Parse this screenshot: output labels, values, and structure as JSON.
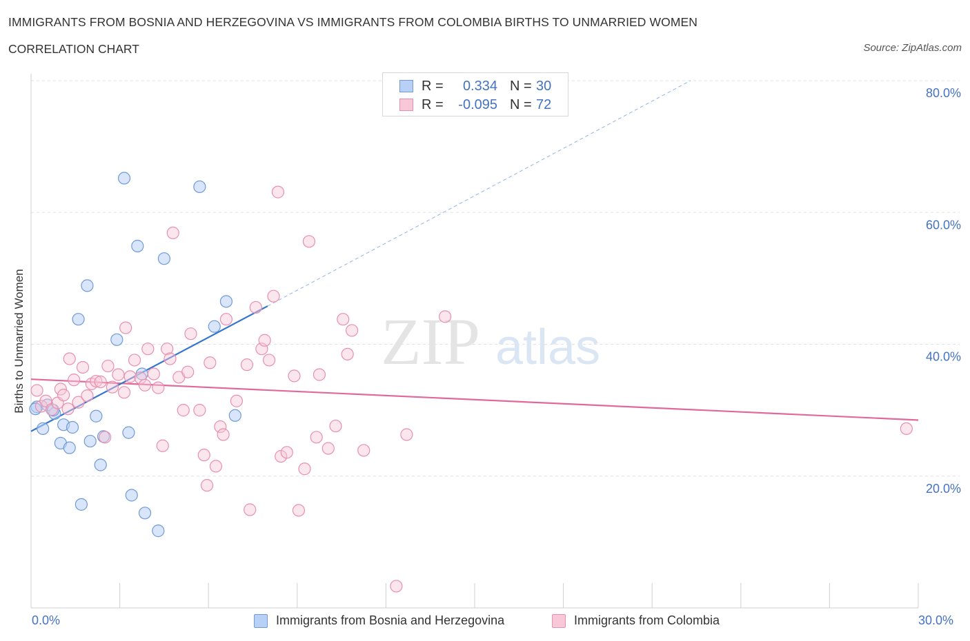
{
  "title": "IMMIGRANTS FROM BOSNIA AND HERZEGOVINA VS IMMIGRANTS FROM COLOMBIA BIRTHS TO UNMARRIED WOMEN",
  "subtitle": "CORRELATION CHART",
  "source": "Source: ZipAtlas.com",
  "watermark": {
    "zip": "ZIP",
    "atlas": "atlas"
  },
  "legend": {
    "rows": [
      {
        "r_label": "R =",
        "r_value": "0.334",
        "n_label": "N =",
        "n_value": "30"
      },
      {
        "r_label": "R =",
        "r_value": "-0.095",
        "n_label": "N =",
        "n_value": "72"
      }
    ]
  },
  "bottom_legend": {
    "series1": "Immigrants from Bosnia and Herzegovina",
    "series2": "Immigrants from Colombia"
  },
  "colors": {
    "blue_fill": "#b8d0f5",
    "blue_stroke": "#6f9ad6",
    "blue_line": "#3575d0",
    "pink_fill": "#f8c8d8",
    "pink_stroke": "#e88fae",
    "pink_line": "#e0689a",
    "grid": "#e0e0e0",
    "accent_text": "#4472c4"
  },
  "chart_data": {
    "type": "scatter",
    "title": "IMMIGRANTS FROM BOSNIA AND HERZEGOVINA VS IMMIGRANTS FROM COLOMBIA BIRTHS TO UNMARRIED WOMEN",
    "xlabel": "",
    "ylabel": "Births to Unmarried Women",
    "xlim": [
      0,
      30
    ],
    "ylim": [
      0,
      80
    ],
    "x_tick_labels": [
      "0.0%",
      "30.0%"
    ],
    "y_ticks": [
      20,
      40,
      60,
      80
    ],
    "y_tick_labels": [
      "20.0%",
      "40.0%",
      "60.0%",
      "80.0%"
    ],
    "grid": true,
    "legend_position": "top-center",
    "series": [
      {
        "name": "Immigrants from Bosnia and Herzegovina",
        "color": "#b8d0f5",
        "points": [
          [
            0.2,
            30.5
          ],
          [
            0.4,
            27.2
          ],
          [
            0.55,
            30.8
          ],
          [
            0.8,
            29.5
          ],
          [
            1.0,
            25.0
          ],
          [
            1.1,
            27.8
          ],
          [
            1.3,
            24.3
          ],
          [
            1.4,
            27.4
          ],
          [
            1.6,
            43.8
          ],
          [
            1.7,
            15.7
          ],
          [
            1.9,
            48.9
          ],
          [
            2.0,
            25.3
          ],
          [
            2.2,
            29.1
          ],
          [
            2.35,
            21.7
          ],
          [
            2.45,
            26.0
          ],
          [
            2.9,
            40.7
          ],
          [
            3.15,
            65.2
          ],
          [
            3.3,
            26.6
          ],
          [
            3.4,
            17.1
          ],
          [
            3.6,
            54.9
          ],
          [
            3.75,
            35.5
          ],
          [
            3.85,
            14.4
          ],
          [
            4.3,
            11.7
          ],
          [
            4.5,
            53.0
          ],
          [
            5.7,
            63.9
          ],
          [
            6.2,
            42.7
          ],
          [
            6.6,
            46.5
          ],
          [
            6.9,
            29.2
          ],
          [
            0.15,
            30.2
          ],
          [
            0.75,
            30.0
          ]
        ],
        "trend": {
          "x": [
            0,
            8
          ],
          "y": [
            26.8,
            45.8
          ]
        },
        "trend_dashed_to": {
          "x": 22.3,
          "y": 80
        }
      },
      {
        "name": "Immigrants from Colombia",
        "color": "#f8c8d8",
        "points": [
          [
            0.2,
            33.0
          ],
          [
            0.35,
            30.6
          ],
          [
            0.5,
            31.4
          ],
          [
            0.7,
            30.1
          ],
          [
            0.9,
            31.1
          ],
          [
            1.0,
            33.2
          ],
          [
            1.1,
            32.3
          ],
          [
            1.3,
            37.8
          ],
          [
            1.45,
            34.6
          ],
          [
            1.6,
            31.2
          ],
          [
            1.75,
            36.5
          ],
          [
            1.9,
            32.2
          ],
          [
            2.05,
            34.0
          ],
          [
            2.2,
            34.4
          ],
          [
            2.35,
            34.3
          ],
          [
            2.5,
            25.9
          ],
          [
            2.6,
            36.7
          ],
          [
            2.75,
            33.5
          ],
          [
            2.95,
            35.4
          ],
          [
            3.15,
            32.7
          ],
          [
            3.2,
            42.5
          ],
          [
            3.35,
            35.1
          ],
          [
            3.5,
            37.6
          ],
          [
            3.7,
            34.9
          ],
          [
            3.85,
            33.8
          ],
          [
            3.95,
            39.3
          ],
          [
            4.15,
            35.5
          ],
          [
            4.3,
            33.4
          ],
          [
            4.45,
            24.6
          ],
          [
            4.6,
            39.3
          ],
          [
            4.7,
            37.8
          ],
          [
            4.8,
            56.9
          ],
          [
            5.0,
            35.0
          ],
          [
            5.15,
            30.0
          ],
          [
            5.3,
            35.8
          ],
          [
            5.4,
            41.6
          ],
          [
            5.7,
            30.0
          ],
          [
            5.85,
            23.2
          ],
          [
            5.95,
            18.6
          ],
          [
            6.05,
            37.2
          ],
          [
            6.25,
            21.5
          ],
          [
            6.4,
            27.5
          ],
          [
            6.5,
            26.3
          ],
          [
            6.6,
            43.8
          ],
          [
            6.95,
            31.4
          ],
          [
            7.3,
            36.9
          ],
          [
            7.4,
            14.9
          ],
          [
            7.6,
            45.6
          ],
          [
            7.8,
            39.3
          ],
          [
            7.9,
            40.6
          ],
          [
            8.05,
            37.6
          ],
          [
            8.2,
            47.3
          ],
          [
            8.35,
            63.1
          ],
          [
            8.45,
            23.0
          ],
          [
            8.65,
            23.6
          ],
          [
            8.9,
            35.2
          ],
          [
            9.05,
            14.8
          ],
          [
            9.25,
            21.1
          ],
          [
            9.4,
            55.6
          ],
          [
            9.65,
            25.9
          ],
          [
            9.75,
            35.4
          ],
          [
            10.05,
            24.2
          ],
          [
            10.3,
            27.6
          ],
          [
            10.55,
            43.8
          ],
          [
            10.7,
            38.5
          ],
          [
            10.85,
            42.1
          ],
          [
            11.25,
            23.9
          ],
          [
            12.35,
            3.3
          ],
          [
            12.7,
            26.3
          ],
          [
            14.0,
            44.2
          ],
          [
            29.6,
            27.2
          ],
          [
            1.25,
            30.2
          ]
        ],
        "trend": {
          "x": [
            0,
            30
          ],
          "y": [
            34.7,
            28.5
          ]
        }
      }
    ]
  }
}
